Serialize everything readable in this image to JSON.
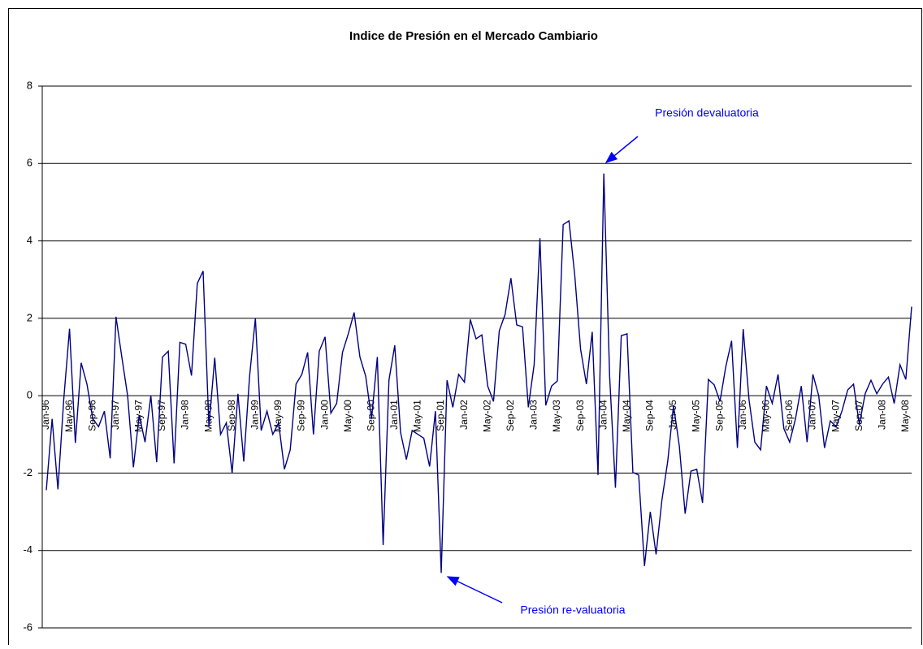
{
  "chart_data": {
    "type": "line",
    "title": "Indice de Presión en el Mercado Cambiario",
    "categories": [
      "Jan-96",
      null,
      null,
      null,
      "May-96",
      null,
      null,
      null,
      "Sep-96",
      null,
      null,
      null,
      "Jan-97",
      null,
      null,
      null,
      "May-97",
      null,
      null,
      null,
      "Sep-97",
      null,
      null,
      null,
      "Jan-98",
      null,
      null,
      null,
      "May-98",
      null,
      null,
      null,
      "Sep-98",
      null,
      null,
      null,
      "Jan-99",
      null,
      null,
      null,
      "May-99",
      null,
      null,
      null,
      "Sep-99",
      null,
      null,
      null,
      "Jan-00",
      null,
      null,
      null,
      "May-00",
      null,
      null,
      null,
      "Sep-00",
      null,
      null,
      null,
      "Jan-01",
      null,
      null,
      null,
      "May-01",
      null,
      null,
      null,
      "Sep-01",
      null,
      null,
      null,
      "Jan-02",
      null,
      null,
      null,
      "May-02",
      null,
      null,
      null,
      "Sep-02",
      null,
      null,
      null,
      "Jan-03",
      null,
      null,
      null,
      "May-03",
      null,
      null,
      null,
      "Sep-03",
      null,
      null,
      null,
      "Jan-04",
      null,
      null,
      null,
      "May-04",
      null,
      null,
      null,
      "Sep-04",
      null,
      null,
      null,
      "Jan-05",
      null,
      null,
      null,
      "May-05",
      null,
      null,
      null,
      "Sep-05",
      null,
      null,
      null,
      "Jan-06",
      null,
      null,
      null,
      "May-06",
      null,
      null,
      null,
      "Sep-06",
      null,
      null,
      null,
      "Jan-07",
      null,
      null,
      null,
      "May-07",
      null,
      null,
      null,
      "Sep-07",
      null,
      null,
      null,
      "Jan-08",
      null,
      null,
      null,
      "May-08",
      null
    ],
    "values": [
      -2.44,
      -0.6,
      -2.42,
      -0.1,
      1.73,
      -1.22,
      0.85,
      0.3,
      -0.6,
      -0.8,
      -0.4,
      -1.62,
      2.04,
      1.0,
      0.0,
      -1.85,
      -0.5,
      -1.2,
      0.0,
      -1.72,
      1.0,
      1.15,
      -1.75,
      1.38,
      1.33,
      0.52,
      2.9,
      3.22,
      -0.8,
      0.98,
      -1.0,
      -0.7,
      -2.0,
      0.05,
      -1.7,
      0.5,
      2.0,
      -0.9,
      -0.4,
      -1.0,
      -0.7,
      -1.9,
      -1.4,
      0.3,
      0.55,
      1.12,
      -1.0,
      1.15,
      1.52,
      -0.45,
      -0.2,
      1.12,
      1.6,
      2.15,
      1.0,
      0.5,
      -0.6,
      1.0,
      -3.86,
      0.4,
      1.3,
      -0.95,
      -1.65,
      -0.9,
      -1.0,
      -1.1,
      -1.83,
      -0.4,
      -4.58,
      0.4,
      -0.3,
      0.55,
      0.35,
      1.97,
      1.47,
      1.57,
      0.25,
      -0.15,
      1.68,
      2.1,
      3.04,
      1.83,
      1.78,
      -0.3,
      0.8,
      4.07,
      -0.25,
      0.25,
      0.38,
      4.42,
      4.52,
      3.1,
      1.2,
      0.3,
      1.65,
      -2.05,
      5.74,
      0.5,
      -2.38,
      1.55,
      1.6,
      -1.98,
      -2.05,
      -4.4,
      -3.0,
      -4.1,
      -2.7,
      -1.7,
      -0.25,
      -1.3,
      -3.05,
      -1.95,
      -1.9,
      -2.77,
      0.42,
      0.28,
      -0.15,
      0.75,
      1.42,
      -1.35,
      1.72,
      -0.1,
      -1.2,
      -1.4,
      0.25,
      -0.2,
      0.55,
      -0.85,
      -1.2,
      -0.6,
      0.25,
      -1.2,
      0.55,
      0.0,
      -1.35,
      -0.65,
      -0.8,
      -0.4,
      0.15,
      0.3,
      -0.75,
      0.05,
      0.4,
      0.05,
      0.3,
      0.48,
      -0.2,
      0.8,
      0.42,
      2.3
    ],
    "color": "#000080",
    "ylim": [
      -6,
      8
    ],
    "yticks": [
      -6,
      -4,
      -2,
      0,
      2,
      4,
      6,
      8
    ],
    "grid": true,
    "annotations": [
      {
        "text": "Presión devaluatoria"
      },
      {
        "text": "Presión re-valuatoria"
      }
    ]
  }
}
